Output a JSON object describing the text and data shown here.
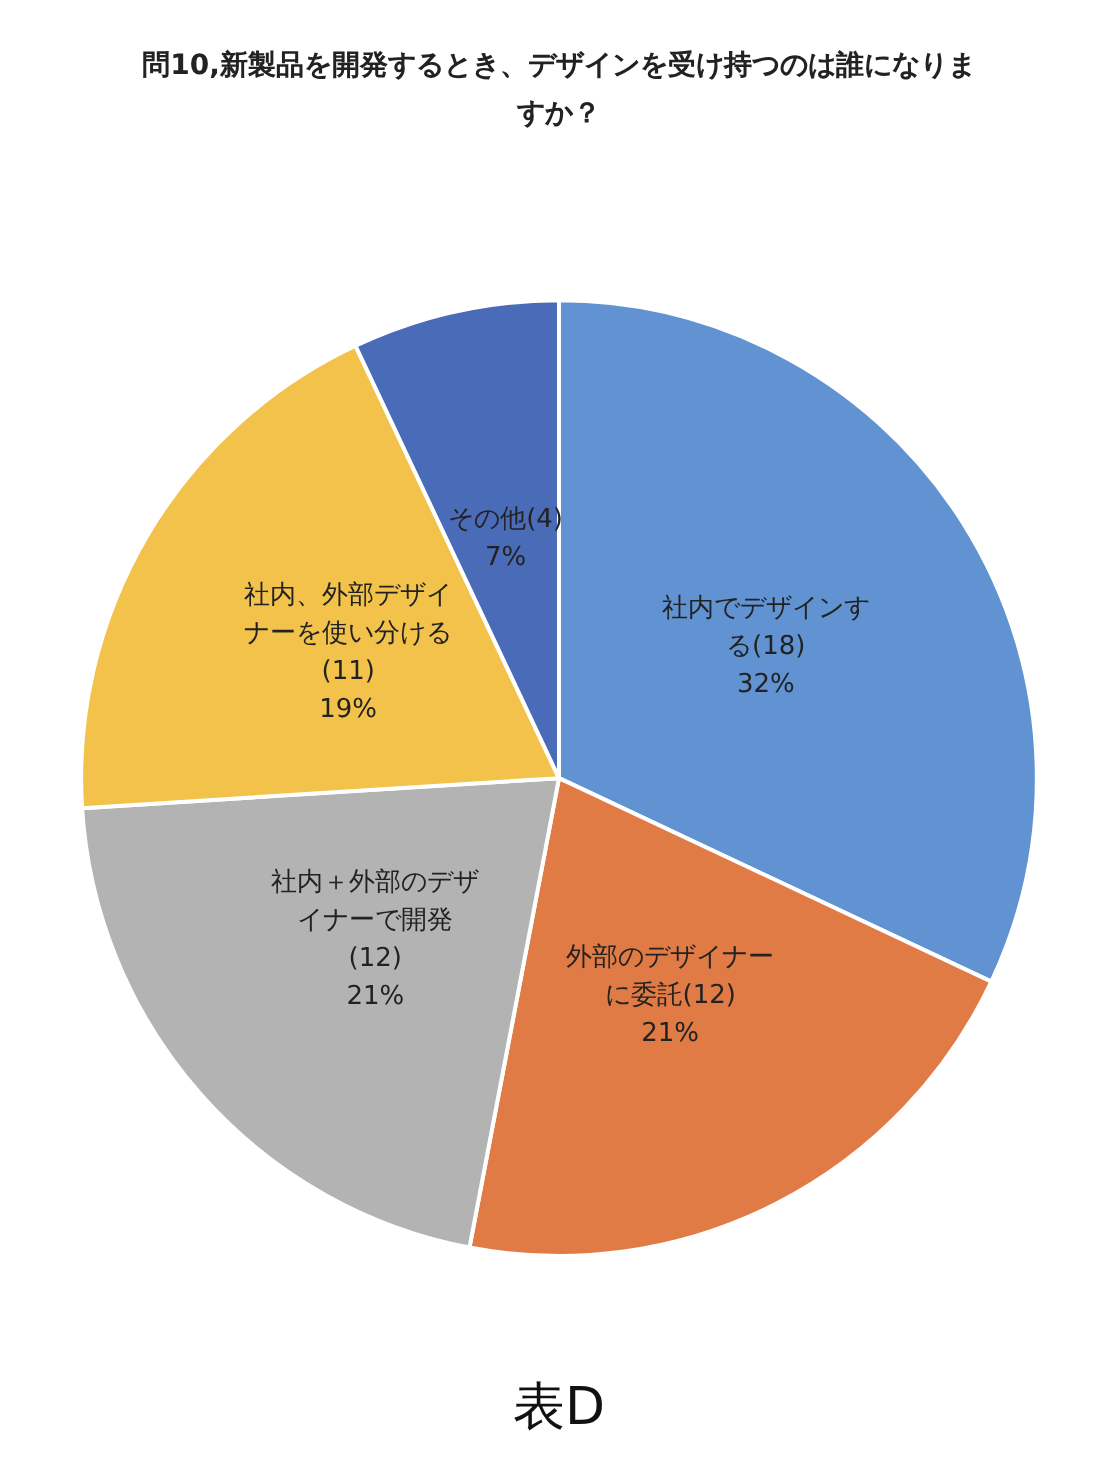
{
  "chart_data": {
    "type": "pie",
    "title": "問10,新製品を開発するとき、デザインを受け持つのは誰になりますか？",
    "categories": [
      "社内でデザインする(18)",
      "外部のデザイナーに委託(12)",
      "社内＋外部のデザイナーで開発(12)",
      "社内、外部デザイナーを使い分ける(11)",
      "その他(4)"
    ],
    "values": [
      32,
      21,
      21,
      19,
      7
    ],
    "value_labels": [
      "32%",
      "21%",
      "21%",
      "19%",
      "7%"
    ],
    "colors": [
      "#6193d2",
      "#e07b45",
      "#b3b3b3",
      "#f2c24a",
      "#4a6cb8"
    ],
    "annotations": [
      "表D"
    ]
  }
}
